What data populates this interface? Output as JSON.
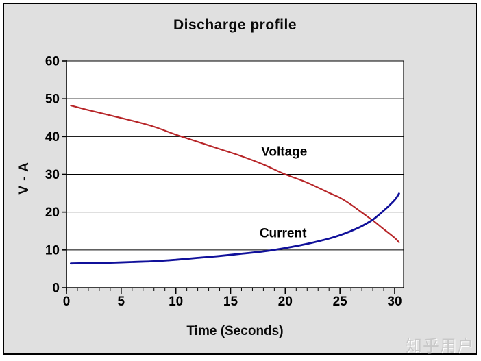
{
  "watermark": {
    "text": "知乎用户"
  },
  "chart_data": {
    "type": "line",
    "title": "Discharge profile",
    "xlabel": "Time (Seconds)",
    "ylabel": "V - A",
    "xlim": [
      0,
      30.9
    ],
    "ylim": [
      0,
      60
    ],
    "xticks_major": [
      0,
      5,
      10,
      15,
      20,
      25,
      30
    ],
    "xtick_minor_step": 1,
    "yticks": [
      0,
      10,
      20,
      30,
      40,
      50,
      60
    ],
    "grid": "horizontal",
    "legend": "inline-labels",
    "background_color": "#e0e0e0",
    "plot_background_color": "#ffffff",
    "x": [
      0.4,
      2,
      4,
      6,
      8,
      10,
      12,
      14,
      16,
      18,
      20,
      22,
      24,
      25,
      26,
      27,
      28,
      29,
      30,
      30.4
    ],
    "series": [
      {
        "name": "Voltage",
        "color": "#b72528",
        "line_width": 2.2,
        "values": [
          48.2,
          47.0,
          45.6,
          44.2,
          42.6,
          40.5,
          38.6,
          36.7,
          34.8,
          32.6,
          30.0,
          27.8,
          25.1,
          23.8,
          22.0,
          19.9,
          17.8,
          15.5,
          13.2,
          12.0
        ],
        "label_anchor": {
          "t": 19.9,
          "v": 36.2
        }
      },
      {
        "name": "Current",
        "color": "#10109a",
        "line_width": 2.8,
        "values": [
          6.4,
          6.5,
          6.6,
          6.8,
          7.0,
          7.4,
          7.9,
          8.4,
          9.0,
          9.6,
          10.5,
          11.6,
          13.0,
          13.9,
          15.0,
          16.3,
          18.0,
          20.4,
          23.2,
          24.9
        ],
        "label_anchor": {
          "t": 19.8,
          "v": 14.6
        }
      }
    ]
  }
}
